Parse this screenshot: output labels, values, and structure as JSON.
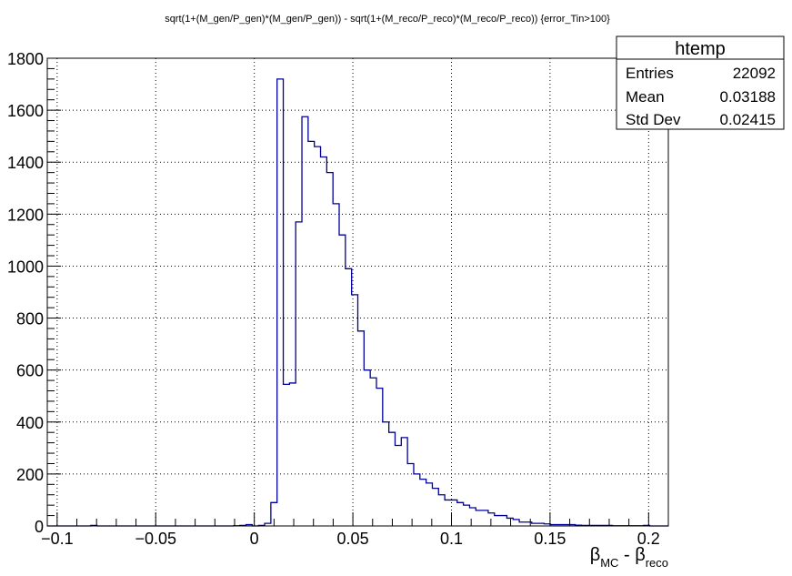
{
  "chart_data": {
    "type": "histogram",
    "title": "sqrt(1+(M_gen/P_gen)*(M_gen/P_gen)) - sqrt(1+(M_reco/P_reco)*(M_reco/P_reco)) {error_Tin>100}",
    "xlabel": {
      "main": "β",
      "sub1": "MC",
      "mid": " - β",
      "sub2": "reco"
    },
    "ylabel": "",
    "xlim": [
      -0.105,
      0.21
    ],
    "ylim": [
      0,
      1800
    ],
    "grid": true,
    "line_color": "#000099",
    "x_ticks": [
      -0.1,
      -0.05,
      0,
      0.05,
      0.1,
      0.15,
      0.2
    ],
    "x_tick_labels": [
      "−0.1",
      "−0.05",
      "0",
      "0.05",
      "0.1",
      "0.15",
      "0.2"
    ],
    "y_ticks": [
      0,
      200,
      400,
      600,
      800,
      1000,
      1200,
      1400,
      1600,
      1800
    ],
    "y_tick_labels": [
      "0",
      "200",
      "400",
      "600",
      "800",
      "1000",
      "1200",
      "1400",
      "1600",
      "1800"
    ],
    "stats_box": {
      "name": "htemp",
      "position": "top-right",
      "rows": [
        {
          "label": "Entries",
          "value": "22092"
        },
        {
          "label": "Mean",
          "value": "0.03188"
        },
        {
          "label": "Std Dev",
          "value": "0.02415"
        }
      ]
    },
    "bin_width": 0.00315,
    "bins_low_edge_start": -0.105,
    "values": [
      0,
      0,
      0,
      0,
      0,
      0,
      0,
      2,
      0,
      0,
      0,
      0,
      0,
      0,
      0,
      0,
      0,
      0,
      0,
      0,
      0,
      0,
      0,
      0,
      0,
      0,
      0,
      0,
      0,
      0,
      1,
      2,
      5,
      0,
      2,
      10,
      90,
      1720,
      545,
      550,
      1170,
      1575,
      1480,
      1460,
      1420,
      1360,
      1240,
      1120,
      990,
      890,
      750,
      600,
      570,
      530,
      400,
      360,
      310,
      340,
      240,
      200,
      180,
      165,
      145,
      120,
      100,
      100,
      90,
      80,
      70,
      60,
      60,
      50,
      40,
      40,
      30,
      25,
      15,
      15,
      10,
      10,
      8,
      5,
      5,
      5,
      5,
      3,
      2,
      2,
      2,
      2,
      2,
      1,
      1,
      1,
      1,
      1,
      2,
      0,
      0,
      0
    ]
  }
}
